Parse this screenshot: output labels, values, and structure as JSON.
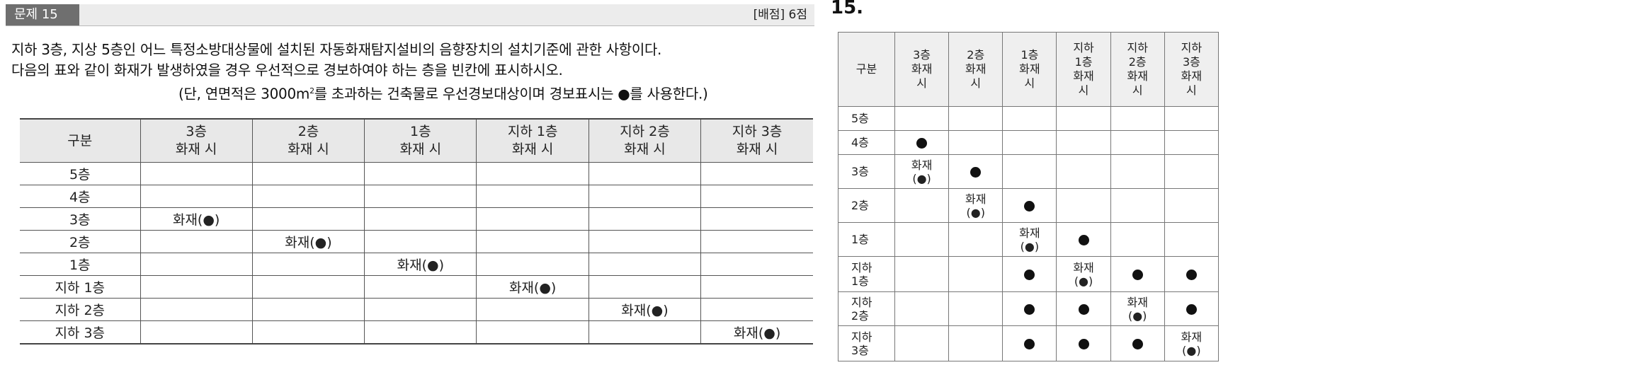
{
  "problem": {
    "tag": "문제 15",
    "score": "[배점] 6점",
    "line1": "지하 3층, 지상 5층인 어느 특정소방대상물에 설치된 자동화재탐지설비의 음향장치의 설치기준에 관한 사항이다.",
    "line2": "다음의 표와 같이 화재가 발생하였을 경우 우선적으로 경보하여야 하는 층을 빈칸에 표시하시오.",
    "line3_a": "(단, 연면적은 3000m",
    "line3_sup": "2",
    "line3_b": "를 초과하는 건축물로 우선경보대상이며 경보표시는 ●를 사용한다.)"
  },
  "question_table": {
    "corner": "구분",
    "columns": [
      [
        "3층",
        "화재 시"
      ],
      [
        "2층",
        "화재 시"
      ],
      [
        "1층",
        "화재 시"
      ],
      [
        "지하 1층",
        "화재 시"
      ],
      [
        "지하 2층",
        "화재 시"
      ],
      [
        "지하 3층",
        "화재 시"
      ]
    ],
    "rows": [
      {
        "label": "5층",
        "cells": [
          "",
          "",
          "",
          "",
          "",
          ""
        ]
      },
      {
        "label": "4층",
        "cells": [
          "",
          "",
          "",
          "",
          "",
          ""
        ]
      },
      {
        "label": "3층",
        "cells": [
          "화재(●)",
          "",
          "",
          "",
          "",
          ""
        ]
      },
      {
        "label": "2층",
        "cells": [
          "",
          "화재(●)",
          "",
          "",
          "",
          ""
        ]
      },
      {
        "label": "1층",
        "cells": [
          "",
          "",
          "화재(●)",
          "",
          "",
          ""
        ]
      },
      {
        "label": "지하 1층",
        "cells": [
          "",
          "",
          "",
          "화재(●)",
          "",
          ""
        ]
      },
      {
        "label": "지하 2층",
        "cells": [
          "",
          "",
          "",
          "",
          "화재(●)",
          ""
        ]
      },
      {
        "label": "지하 3층",
        "cells": [
          "",
          "",
          "",
          "",
          "",
          "화재(●)"
        ]
      }
    ]
  },
  "answer": {
    "number": "15.",
    "corner": "구분",
    "columns": [
      [
        "3층",
        "화재",
        "시"
      ],
      [
        "2층",
        "화재",
        "시"
      ],
      [
        "1층",
        "화재",
        "시"
      ],
      [
        "지하",
        "1층",
        "화재",
        "시"
      ],
      [
        "지하",
        "2층",
        "화재",
        "시"
      ],
      [
        "지하",
        "3층",
        "화재",
        "시"
      ]
    ],
    "fire_text": "화재",
    "fire_mark": "(●)",
    "rows": [
      {
        "label": [
          "5층"
        ],
        "cells": [
          "",
          "",
          "",
          "",
          "",
          ""
        ]
      },
      {
        "label": [
          "4층"
        ],
        "cells": [
          "dot",
          "",
          "",
          "",
          "",
          ""
        ]
      },
      {
        "label": [
          "3층"
        ],
        "cells": [
          "fire",
          "dot",
          "",
          "",
          "",
          ""
        ]
      },
      {
        "label": [
          "2층"
        ],
        "cells": [
          "",
          "fire",
          "dot",
          "",
          "",
          ""
        ]
      },
      {
        "label": [
          "1층"
        ],
        "cells": [
          "",
          "",
          "fire",
          "dot",
          "",
          ""
        ]
      },
      {
        "label": [
          "지하",
          "1층"
        ],
        "cells": [
          "",
          "",
          "dot",
          "fire",
          "dot",
          "dot"
        ]
      },
      {
        "label": [
          "지하",
          "2층"
        ],
        "cells": [
          "",
          "",
          "dot",
          "dot",
          "fire",
          "dot"
        ]
      },
      {
        "label": [
          "지하",
          "3층"
        ],
        "cells": [
          "",
          "",
          "dot",
          "dot",
          "dot",
          "fire"
        ]
      }
    ]
  }
}
